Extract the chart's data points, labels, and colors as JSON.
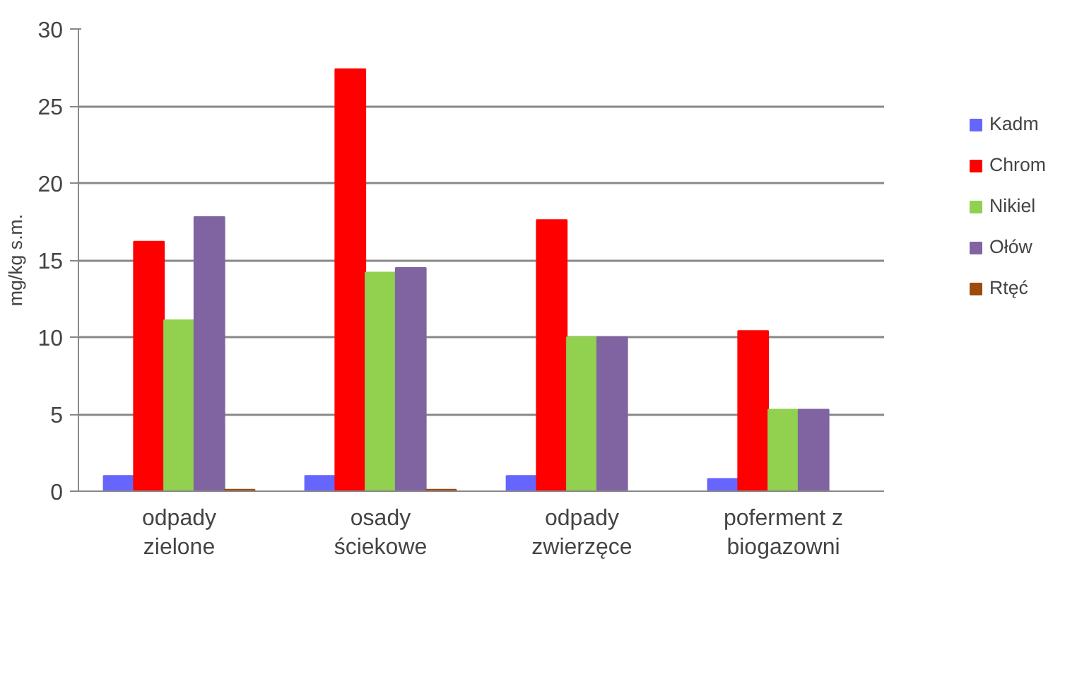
{
  "chart_data": {
    "type": "bar",
    "ylabel": "mg/kg s.m.",
    "categories": [
      "odpady\nzielone",
      "osady\nściekowe",
      "odpady\nzwierzęce",
      "poferment z\nbiogazowni"
    ],
    "series": [
      {
        "name": "Kadm",
        "color": "#6666ff",
        "values": [
          1.0,
          1.0,
          1.0,
          0.8
        ]
      },
      {
        "name": "Chrom",
        "color": "#ff0000",
        "values": [
          16.2,
          27.4,
          17.6,
          10.4
        ]
      },
      {
        "name": "Nikiel",
        "color": "#92d050",
        "values": [
          11.1,
          14.2,
          10.0,
          5.3
        ]
      },
      {
        "name": "Ołów",
        "color": "#8064a2",
        "values": [
          17.8,
          14.5,
          10.0,
          5.3
        ]
      },
      {
        "name": "Rtęć",
        "color": "#9c4a0e",
        "values": [
          0.1,
          0.1,
          0,
          0
        ]
      }
    ],
    "ylim": [
      0,
      30
    ],
    "yticks": [
      0,
      5,
      10,
      15,
      20,
      25,
      30
    ],
    "grid": "y",
    "legend": "right"
  }
}
